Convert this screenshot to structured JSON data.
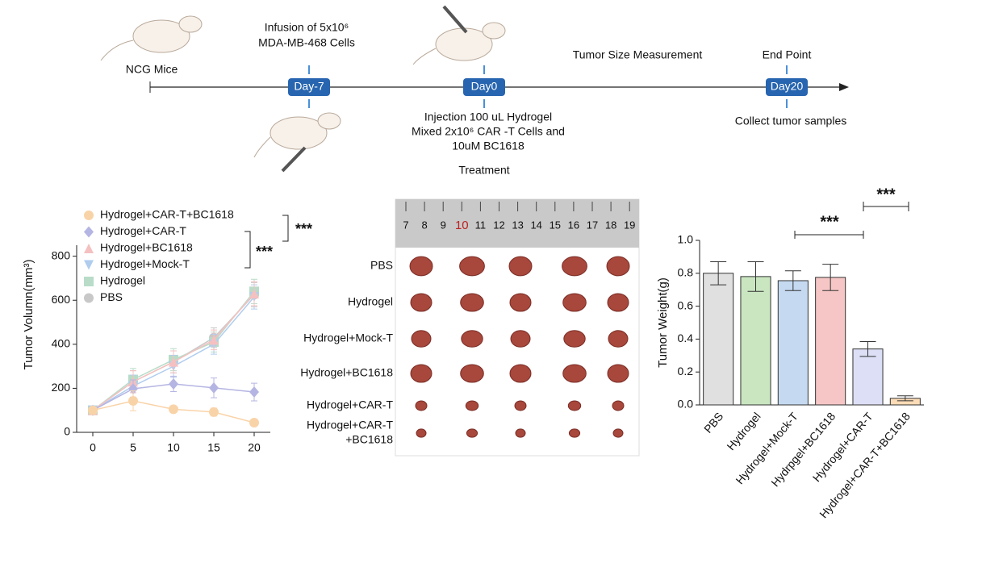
{
  "timeline": {
    "start_label": "NCG Mice",
    "infusion": [
      "Infusion of 5x10⁶",
      "MDA-MB-468 Cells"
    ],
    "measurement": "Tumor Size Measurement",
    "end_point": "End Point",
    "days": [
      "Day-7",
      "Day0",
      "Day20"
    ],
    "injection": [
      "Injection 100 uL Hydrogel",
      "Mixed 2x10⁶ CAR -T Cells and",
      "10uM BC1618"
    ],
    "treatment": "Treatment",
    "collect": "Collect tumor samples"
  },
  "photo": {
    "ruler_numbers": [
      "7",
      "8",
      "9",
      "10",
      "11",
      "12",
      "13",
      "14",
      "15",
      "16",
      "17",
      "18",
      "19"
    ],
    "rows": [
      "PBS",
      "Hydrogel",
      "Hydrogel+Mock-T",
      "Hydrogel+BC1618",
      "Hydrogel+CAR-T",
      [
        "Hydrogel+CAR-T",
        "+BC1618"
      ]
    ]
  },
  "chart_data": [
    {
      "type": "line",
      "y_label": "Tumor Volumn(mm³)",
      "x": [
        0,
        5,
        10,
        15,
        20
      ],
      "xlim": [
        -2,
        22
      ],
      "xticks": [
        0,
        5,
        10,
        15,
        20
      ],
      "ylim": [
        0,
        850
      ],
      "yticks": [
        0,
        200,
        400,
        600,
        800
      ],
      "legend": "top-left",
      "annotations": [
        "***",
        "***"
      ],
      "series": [
        {
          "name": "Hydrogel+CAR-T+BC1618",
          "color": "#f9d3a8",
          "marker": "circle",
          "values": [
            100,
            143,
            105,
            92,
            44
          ],
          "errors": [
            10,
            45,
            15,
            18,
            15
          ]
        },
        {
          "name": "Hydrogel+CAR-T",
          "color": "#b5b5e3",
          "marker": "diamond",
          "values": [
            100,
            198,
            220,
            202,
            183
          ],
          "errors": [
            10,
            40,
            35,
            45,
            40
          ]
        },
        {
          "name": "Hydrogel+BC1618",
          "color": "#f5c0c0",
          "marker": "triangle",
          "values": [
            100,
            230,
            320,
            420,
            630
          ],
          "errors": [
            10,
            50,
            50,
            45,
            55
          ]
        },
        {
          "name": "Hydrogel+Mock-T",
          "color": "#b0cdee",
          "marker": "triangle-down",
          "values": [
            100,
            210,
            300,
            400,
            615
          ],
          "errors": [
            10,
            50,
            50,
            45,
            55
          ]
        },
        {
          "name": "Hydrogel",
          "color": "#b8dcc8",
          "marker": "square",
          "values": [
            100,
            240,
            330,
            410,
            640
          ],
          "errors": [
            10,
            50,
            50,
            45,
            55
          ]
        },
        {
          "name": "PBS",
          "color": "#c8c8c8",
          "marker": "circle",
          "values": [
            100,
            230,
            320,
            430,
            625
          ],
          "errors": [
            10,
            50,
            50,
            45,
            55
          ]
        }
      ]
    },
    {
      "type": "bar",
      "y_label": "Tumor Weight(g)",
      "categories": [
        "PBS",
        "Hydrogel",
        "Hydrogel+Mock-T",
        "Hydrpgel+BC1618",
        "Hydrogel+CAR-T",
        "Hydrogel+CAR-T+BC1618"
      ],
      "values": [
        0.8,
        0.78,
        0.755,
        0.775,
        0.34,
        0.04
      ],
      "errors": [
        0.07,
        0.09,
        0.06,
        0.08,
        0.045,
        0.015
      ],
      "colors": [
        "#e0e0e0",
        "#c9e6c1",
        "#c5d9f1",
        "#f6c6c6",
        "#dcdff5",
        "#fbdcb6"
      ],
      "ylim": [
        0,
        1.0
      ],
      "yticks": [
        {
          "value": 0,
          "label": "0.0"
        },
        0.2,
        0.4,
        0.6,
        0.8,
        {
          "value": 1,
          "label": "1.0"
        }
      ],
      "annotations": [
        "***",
        "***"
      ]
    }
  ]
}
